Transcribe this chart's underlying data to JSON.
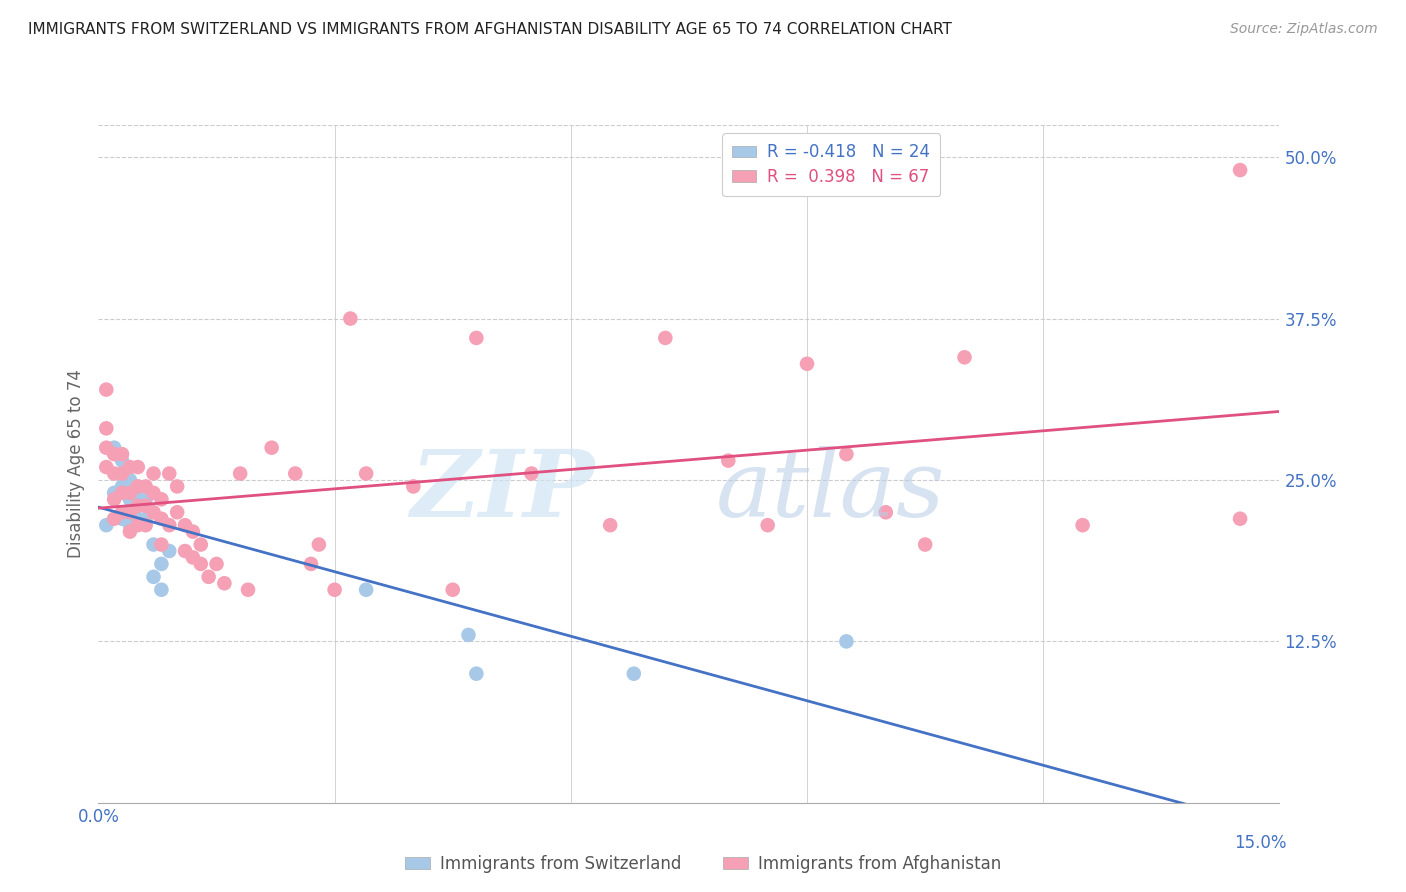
{
  "title": "IMMIGRANTS FROM SWITZERLAND VS IMMIGRANTS FROM AFGHANISTAN DISABILITY AGE 65 TO 74 CORRELATION CHART",
  "source": "Source: ZipAtlas.com",
  "ylabel": "Disability Age 65 to 74",
  "yticks": [
    0.125,
    0.25,
    0.375,
    0.5
  ],
  "ytick_labels": [
    "12.5%",
    "25.0%",
    "37.5%",
    "50.0%"
  ],
  "xmin": 0.0,
  "xmax": 0.15,
  "ymin": 0.0,
  "ymax": 0.525,
  "switzerland_color": "#a8c8e8",
  "afghanistan_color": "#f5a0b5",
  "switzerland_line_color": "#4472c4",
  "afghanistan_line_color": "#e05080",
  "grid_color": "#cccccc",
  "axis_color": "#4472c4",
  "background_color": "#ffffff",
  "legend_R_switzerland": "-0.418",
  "legend_N_switzerland": "24",
  "legend_R_afghanistan": "0.398",
  "legend_N_afghanistan": "67",
  "switzerland_x": [
    0.001,
    0.002,
    0.002,
    0.003,
    0.003,
    0.003,
    0.004,
    0.004,
    0.004,
    0.005,
    0.005,
    0.005,
    0.006,
    0.006,
    0.007,
    0.007,
    0.008,
    0.008,
    0.009,
    0.034,
    0.047,
    0.048,
    0.068,
    0.095
  ],
  "switzerland_y": [
    0.215,
    0.24,
    0.275,
    0.22,
    0.245,
    0.265,
    0.215,
    0.235,
    0.25,
    0.22,
    0.235,
    0.245,
    0.22,
    0.235,
    0.2,
    0.175,
    0.165,
    0.185,
    0.195,
    0.165,
    0.13,
    0.1,
    0.1,
    0.125
  ],
  "afghanistan_x": [
    0.001,
    0.001,
    0.001,
    0.001,
    0.002,
    0.002,
    0.002,
    0.002,
    0.003,
    0.003,
    0.003,
    0.003,
    0.004,
    0.004,
    0.004,
    0.004,
    0.005,
    0.005,
    0.005,
    0.005,
    0.006,
    0.006,
    0.006,
    0.007,
    0.007,
    0.007,
    0.008,
    0.008,
    0.008,
    0.009,
    0.009,
    0.01,
    0.01,
    0.011,
    0.011,
    0.012,
    0.012,
    0.013,
    0.013,
    0.014,
    0.015,
    0.016,
    0.018,
    0.019,
    0.022,
    0.025,
    0.027,
    0.028,
    0.03,
    0.032,
    0.034,
    0.04,
    0.045,
    0.048,
    0.055,
    0.065,
    0.072,
    0.08,
    0.085,
    0.09,
    0.095,
    0.1,
    0.105,
    0.11,
    0.125,
    0.145,
    0.145
  ],
  "afghanistan_y": [
    0.26,
    0.275,
    0.29,
    0.32,
    0.22,
    0.235,
    0.255,
    0.27,
    0.225,
    0.24,
    0.255,
    0.27,
    0.21,
    0.225,
    0.24,
    0.26,
    0.215,
    0.23,
    0.245,
    0.26,
    0.215,
    0.23,
    0.245,
    0.225,
    0.24,
    0.255,
    0.2,
    0.22,
    0.235,
    0.215,
    0.255,
    0.225,
    0.245,
    0.195,
    0.215,
    0.19,
    0.21,
    0.185,
    0.2,
    0.175,
    0.185,
    0.17,
    0.255,
    0.165,
    0.275,
    0.255,
    0.185,
    0.2,
    0.165,
    0.375,
    0.255,
    0.245,
    0.165,
    0.36,
    0.255,
    0.215,
    0.36,
    0.265,
    0.215,
    0.34,
    0.27,
    0.225,
    0.2,
    0.345,
    0.215,
    0.49,
    0.22
  ]
}
